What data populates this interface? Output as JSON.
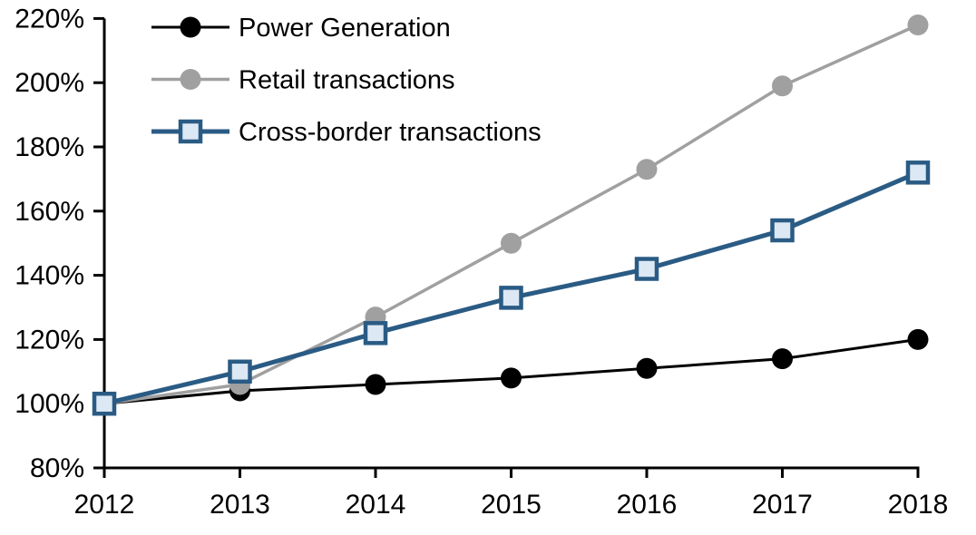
{
  "chart_data": {
    "type": "line",
    "title": "",
    "xlabel": "",
    "ylabel": "",
    "x": [
      2012,
      2013,
      2014,
      2015,
      2016,
      2017,
      2018
    ],
    "xticklabels": [
      "2012",
      "2013",
      "2014",
      "2015",
      "2016",
      "2017",
      "2018"
    ],
    "ylim": [
      80,
      220
    ],
    "ytick_step": 20,
    "yticklabels": [
      "80%",
      "100%",
      "120%",
      "140%",
      "160%",
      "180%",
      "200%",
      "220%"
    ],
    "grid": false,
    "legend_position": "top-left-inside",
    "background_color": "#ffffff",
    "axis_color": "#000000",
    "series": [
      {
        "name": "Power Generation",
        "color": "#000000",
        "marker": "circle",
        "marker_fill": "#000000",
        "line_width": 3,
        "values": [
          100,
          104,
          106,
          108,
          111,
          114,
          120
        ]
      },
      {
        "name": "Retail transactions",
        "color": "#A0A0A0",
        "marker": "circle",
        "marker_fill": "#A0A0A0",
        "line_width": 3.5,
        "values": [
          100,
          106,
          127,
          150,
          173,
          199,
          218
        ]
      },
      {
        "name": "Cross-border transactions",
        "color": "#2A5B84",
        "marker": "square",
        "marker_fill": "#DCE8F4",
        "line_width": 5,
        "values": [
          100,
          110,
          122,
          133,
          142,
          154,
          172
        ]
      }
    ]
  }
}
